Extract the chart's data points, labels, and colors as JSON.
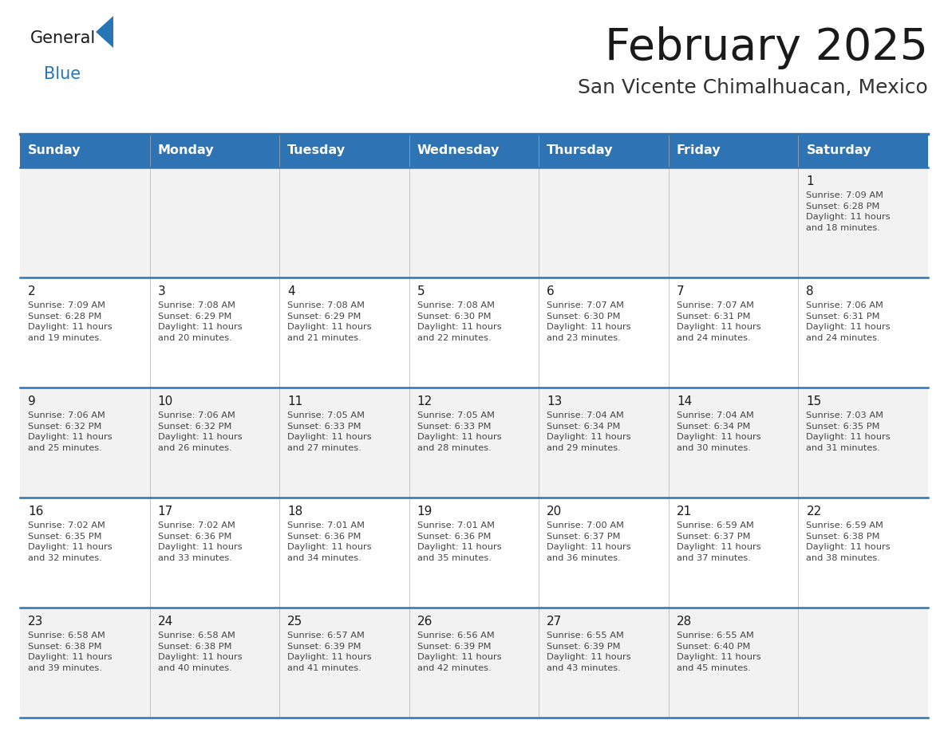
{
  "title": "February 2025",
  "subtitle": "San Vicente Chimalhuacan, Mexico",
  "header_bg_color": "#2e74b5",
  "header_text_color": "#ffffff",
  "border_color": "#2e74b5",
  "day_headers": [
    "Sunday",
    "Monday",
    "Tuesday",
    "Wednesday",
    "Thursday",
    "Friday",
    "Saturday"
  ],
  "title_color": "#1a1a1a",
  "subtitle_color": "#333333",
  "day_number_color": "#1a1a1a",
  "cell_text_color": "#444444",
  "row_colors": [
    "#f2f2f2",
    "#ffffff",
    "#f2f2f2",
    "#ffffff",
    "#f2f2f2"
  ],
  "calendar_data": [
    [
      {
        "day": "",
        "info": ""
      },
      {
        "day": "",
        "info": ""
      },
      {
        "day": "",
        "info": ""
      },
      {
        "day": "",
        "info": ""
      },
      {
        "day": "",
        "info": ""
      },
      {
        "day": "",
        "info": ""
      },
      {
        "day": "1",
        "info": "Sunrise: 7:09 AM\nSunset: 6:28 PM\nDaylight: 11 hours\nand 18 minutes."
      }
    ],
    [
      {
        "day": "2",
        "info": "Sunrise: 7:09 AM\nSunset: 6:28 PM\nDaylight: 11 hours\nand 19 minutes."
      },
      {
        "day": "3",
        "info": "Sunrise: 7:08 AM\nSunset: 6:29 PM\nDaylight: 11 hours\nand 20 minutes."
      },
      {
        "day": "4",
        "info": "Sunrise: 7:08 AM\nSunset: 6:29 PM\nDaylight: 11 hours\nand 21 minutes."
      },
      {
        "day": "5",
        "info": "Sunrise: 7:08 AM\nSunset: 6:30 PM\nDaylight: 11 hours\nand 22 minutes."
      },
      {
        "day": "6",
        "info": "Sunrise: 7:07 AM\nSunset: 6:30 PM\nDaylight: 11 hours\nand 23 minutes."
      },
      {
        "day": "7",
        "info": "Sunrise: 7:07 AM\nSunset: 6:31 PM\nDaylight: 11 hours\nand 24 minutes."
      },
      {
        "day": "8",
        "info": "Sunrise: 7:06 AM\nSunset: 6:31 PM\nDaylight: 11 hours\nand 24 minutes."
      }
    ],
    [
      {
        "day": "9",
        "info": "Sunrise: 7:06 AM\nSunset: 6:32 PM\nDaylight: 11 hours\nand 25 minutes."
      },
      {
        "day": "10",
        "info": "Sunrise: 7:06 AM\nSunset: 6:32 PM\nDaylight: 11 hours\nand 26 minutes."
      },
      {
        "day": "11",
        "info": "Sunrise: 7:05 AM\nSunset: 6:33 PM\nDaylight: 11 hours\nand 27 minutes."
      },
      {
        "day": "12",
        "info": "Sunrise: 7:05 AM\nSunset: 6:33 PM\nDaylight: 11 hours\nand 28 minutes."
      },
      {
        "day": "13",
        "info": "Sunrise: 7:04 AM\nSunset: 6:34 PM\nDaylight: 11 hours\nand 29 minutes."
      },
      {
        "day": "14",
        "info": "Sunrise: 7:04 AM\nSunset: 6:34 PM\nDaylight: 11 hours\nand 30 minutes."
      },
      {
        "day": "15",
        "info": "Sunrise: 7:03 AM\nSunset: 6:35 PM\nDaylight: 11 hours\nand 31 minutes."
      }
    ],
    [
      {
        "day": "16",
        "info": "Sunrise: 7:02 AM\nSunset: 6:35 PM\nDaylight: 11 hours\nand 32 minutes."
      },
      {
        "day": "17",
        "info": "Sunrise: 7:02 AM\nSunset: 6:36 PM\nDaylight: 11 hours\nand 33 minutes."
      },
      {
        "day": "18",
        "info": "Sunrise: 7:01 AM\nSunset: 6:36 PM\nDaylight: 11 hours\nand 34 minutes."
      },
      {
        "day": "19",
        "info": "Sunrise: 7:01 AM\nSunset: 6:36 PM\nDaylight: 11 hours\nand 35 minutes."
      },
      {
        "day": "20",
        "info": "Sunrise: 7:00 AM\nSunset: 6:37 PM\nDaylight: 11 hours\nand 36 minutes."
      },
      {
        "day": "21",
        "info": "Sunrise: 6:59 AM\nSunset: 6:37 PM\nDaylight: 11 hours\nand 37 minutes."
      },
      {
        "day": "22",
        "info": "Sunrise: 6:59 AM\nSunset: 6:38 PM\nDaylight: 11 hours\nand 38 minutes."
      }
    ],
    [
      {
        "day": "23",
        "info": "Sunrise: 6:58 AM\nSunset: 6:38 PM\nDaylight: 11 hours\nand 39 minutes."
      },
      {
        "day": "24",
        "info": "Sunrise: 6:58 AM\nSunset: 6:38 PM\nDaylight: 11 hours\nand 40 minutes."
      },
      {
        "day": "25",
        "info": "Sunrise: 6:57 AM\nSunset: 6:39 PM\nDaylight: 11 hours\nand 41 minutes."
      },
      {
        "day": "26",
        "info": "Sunrise: 6:56 AM\nSunset: 6:39 PM\nDaylight: 11 hours\nand 42 minutes."
      },
      {
        "day": "27",
        "info": "Sunrise: 6:55 AM\nSunset: 6:39 PM\nDaylight: 11 hours\nand 43 minutes."
      },
      {
        "day": "28",
        "info": "Sunrise: 6:55 AM\nSunset: 6:40 PM\nDaylight: 11 hours\nand 45 minutes."
      },
      {
        "day": "",
        "info": ""
      }
    ]
  ]
}
